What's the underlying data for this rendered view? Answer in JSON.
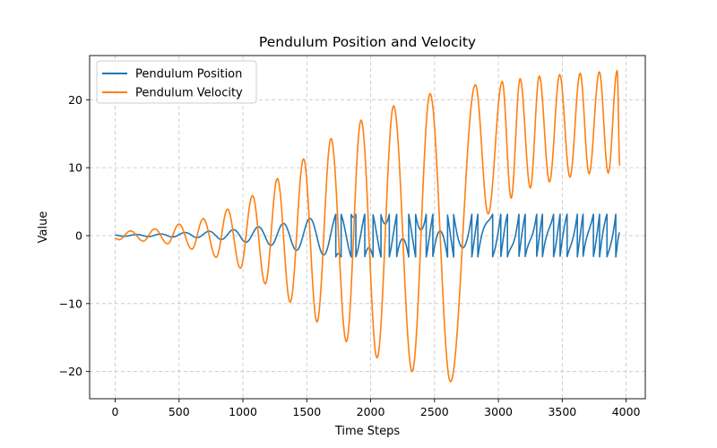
{
  "chart_data": {
    "type": "line",
    "title": "Pendulum Position and Velocity",
    "xlabel": "Time Steps",
    "ylabel": "Value",
    "xlim": [
      -200,
      4150
    ],
    "ylim": [
      -24,
      26.5
    ],
    "xticks": [
      0,
      500,
      1000,
      1500,
      2000,
      2500,
      3000,
      3500,
      4000
    ],
    "yticks": [
      -20,
      -10,
      0,
      10,
      20
    ],
    "ytick_labels": [
      "−20",
      "−10",
      "0",
      "10",
      "20"
    ],
    "grid": true,
    "legend_position": "top-left",
    "x_range": [
      0,
      3950
    ],
    "series": [
      {
        "name": "Pendulum Position",
        "color": "#1f77b4",
        "description": "Oscillation amplitude grows from ~0.1 to ~3.14 (about 2500 steps), then wraps between -pi and +pi (sawtooth)",
        "key_points": [
          {
            "x": 0,
            "y": 0.1
          },
          {
            "x": 1000,
            "y": 0.4
          },
          {
            "x": 1500,
            "y": 1.1
          },
          {
            "x": 2000,
            "y": 1.8
          },
          {
            "x": 2500,
            "y": 2.5
          },
          {
            "x": 2900,
            "y": 3.0
          },
          {
            "x": 3950,
            "y": 2.8
          }
        ]
      },
      {
        "name": "Pendulum Velocity",
        "color": "#ff7f0e",
        "description": "Oscillation amplitude grows from ~0.6 to ~22, then becomes positive-only between ~3 and ~24",
        "peaks": [
          {
            "x": 120,
            "y": 0.7
          },
          {
            "x": 310,
            "y": 1.0
          },
          {
            "x": 500,
            "y": 1.7
          },
          {
            "x": 690,
            "y": 2.5
          },
          {
            "x": 880,
            "y": 3.9
          },
          {
            "x": 1075,
            "y": 5.9
          },
          {
            "x": 1270,
            "y": 8.4
          },
          {
            "x": 1475,
            "y": 11.3
          },
          {
            "x": 1690,
            "y": 14.3
          },
          {
            "x": 1925,
            "y": 17.0
          },
          {
            "x": 2180,
            "y": 19.1
          },
          {
            "x": 2465,
            "y": 20.9
          },
          {
            "x": 2820,
            "y": 22.2
          },
          {
            "x": 3030,
            "y": 22.7
          },
          {
            "x": 3170,
            "y": 23.1
          },
          {
            "x": 3320,
            "y": 23.5
          },
          {
            "x": 3480,
            "y": 23.7
          },
          {
            "x": 3640,
            "y": 23.9
          },
          {
            "x": 3790,
            "y": 24.1
          },
          {
            "x": 3930,
            "y": 24.3
          }
        ],
        "troughs": [
          {
            "x": 30,
            "y": -0.6
          },
          {
            "x": 220,
            "y": -0.8
          },
          {
            "x": 410,
            "y": -1.2
          },
          {
            "x": 600,
            "y": -2.0
          },
          {
            "x": 790,
            "y": -3.2
          },
          {
            "x": 980,
            "y": -4.8
          },
          {
            "x": 1175,
            "y": -7.1
          },
          {
            "x": 1370,
            "y": -9.8
          },
          {
            "x": 1580,
            "y": -12.7
          },
          {
            "x": 1810,
            "y": -15.6
          },
          {
            "x": 2050,
            "y": -18.0
          },
          {
            "x": 2325,
            "y": -20.0
          },
          {
            "x": 2625,
            "y": -21.5
          },
          {
            "x": 2920,
            "y": 3.2
          },
          {
            "x": 3100,
            "y": 5.5
          },
          {
            "x": 3250,
            "y": 7.0
          },
          {
            "x": 3400,
            "y": 7.9
          },
          {
            "x": 3560,
            "y": 8.6
          },
          {
            "x": 3710,
            "y": 9.1
          },
          {
            "x": 3860,
            "y": 9.2
          }
        ],
        "end_point": {
          "x": 3950,
          "y": 10.3
        }
      }
    ]
  }
}
